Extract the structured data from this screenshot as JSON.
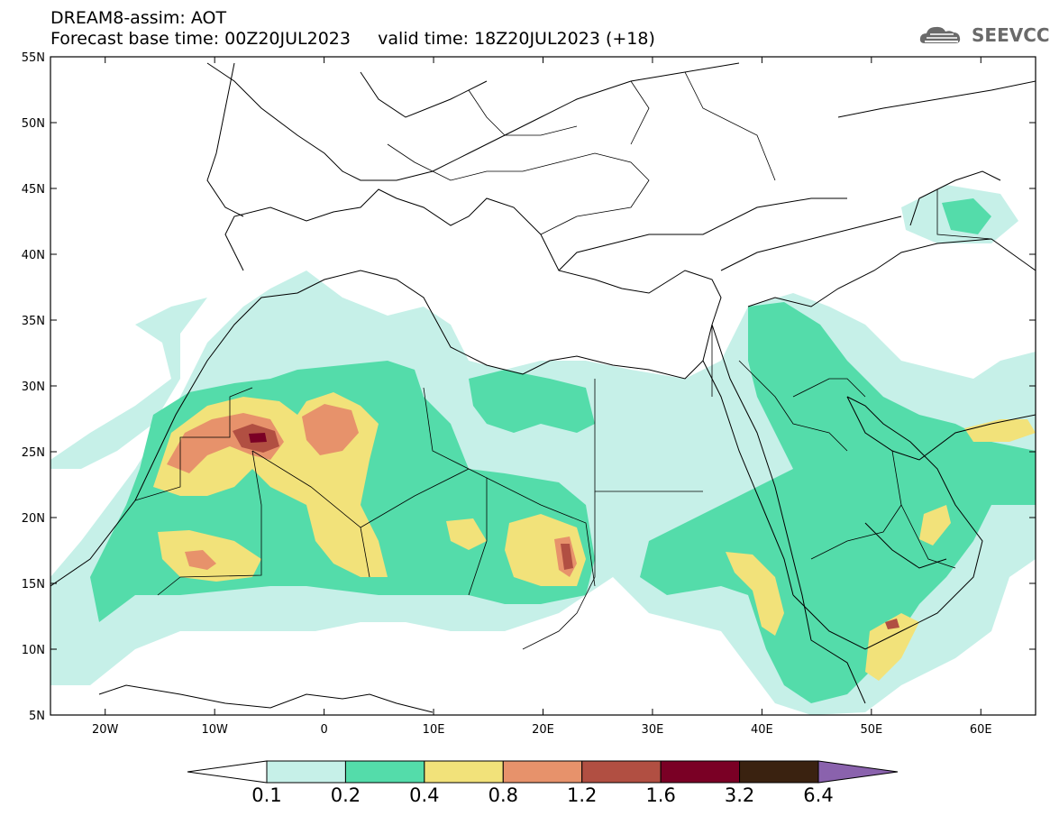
{
  "header": {
    "title": "DREAM8-assim: AOT",
    "forecast_label": "Forecast base time: 00Z20JUL2023",
    "valid_label": "valid time: 18Z20JUL2023 (+18)"
  },
  "logo": {
    "text": "SEEVCCC",
    "icon": "cloud-icon"
  },
  "map": {
    "lat_labels": [
      "55N",
      "50N",
      "45N",
      "40N",
      "35N",
      "30N",
      "25N",
      "20N",
      "15N",
      "10N",
      "5N"
    ],
    "lon_labels": [
      "20W",
      "10W",
      "0",
      "10E",
      "20E",
      "30E",
      "40E",
      "50E",
      "60E"
    ],
    "lon_range": [
      -25,
      65
    ],
    "lat_range": [
      5,
      55
    ]
  },
  "legend": {
    "levels": [
      "0.1",
      "0.2",
      "0.4",
      "0.8",
      "1.2",
      "1.6",
      "3.2",
      "6.4"
    ],
    "colors": [
      "#ffffff",
      "#c6f0e8",
      "#54dcaa",
      "#f2e27a",
      "#e7926b",
      "#b14f42",
      "#7a0025",
      "#3a2210",
      "#8a62ad"
    ]
  }
}
